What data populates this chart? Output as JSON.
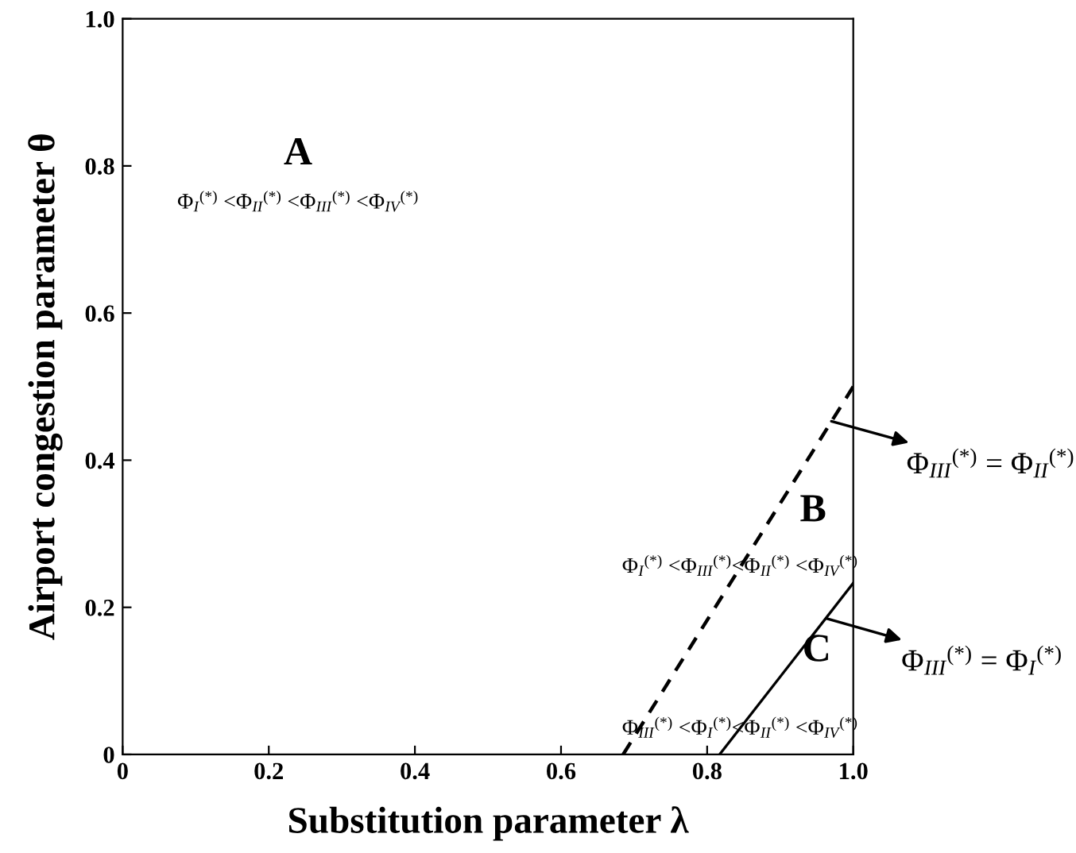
{
  "chart_data": {
    "type": "line",
    "xlabel": "Substitution parameter λ",
    "ylabel": "Airport congestion parameter θ",
    "xlim": [
      0,
      1
    ],
    "ylim": [
      0,
      1
    ],
    "xticks": [
      0,
      0.2,
      0.4,
      0.6,
      0.8,
      {
        "value": 1,
        "label": "1.0"
      }
    ],
    "yticks": [
      0,
      0.2,
      0.4,
      0.6,
      0.8,
      {
        "value": 1,
        "label": "1.0"
      }
    ],
    "grid": false,
    "legend": false,
    "marker": "none",
    "series": [
      {
        "color": "#000000",
        "line_style": "dashed",
        "x": [
          0.685,
          1.0
        ],
        "values": [
          0,
          0.5
        ]
      },
      {
        "color": "#000000",
        "line_style": "solid",
        "x": [
          0.817,
          1.0
        ],
        "values": [
          0,
          0.233
        ]
      }
    ],
    "annotations": [
      "A",
      "Φ$_{I}$$^{(*)}$ <Φ$_{II}$$^{(*)}$ <Φ$_{III}$$^{(*)}$ <Φ$_{IV}$$^{(*)}$",
      "B",
      "Φ$_{I}$$^{(*)}$ <Φ$_{III}$$^{(*)}$<Φ$_{II}$$^{(*)}$ <Φ$_{IV}$$^{(*)}$",
      "C",
      "Φ$_{III}$$^{(*)}$ <Φ$_{I}$$^{(*)}$<Φ$_{II}$$^{(*)}$ <Φ$_{IV}$$^{(*)}$",
      {
        "text": "Φ$_{III}$$^{(*)}$ = Φ$_{II}$$^{(*)}$",
        "x": 0.97,
        "y": 0.453
      },
      {
        "text": "Φ$_{III}$$^{(*)}$ = Φ$_{I}$$^{(*)}$",
        "x": 0.963,
        "y": 0.185
      }
    ]
  }
}
